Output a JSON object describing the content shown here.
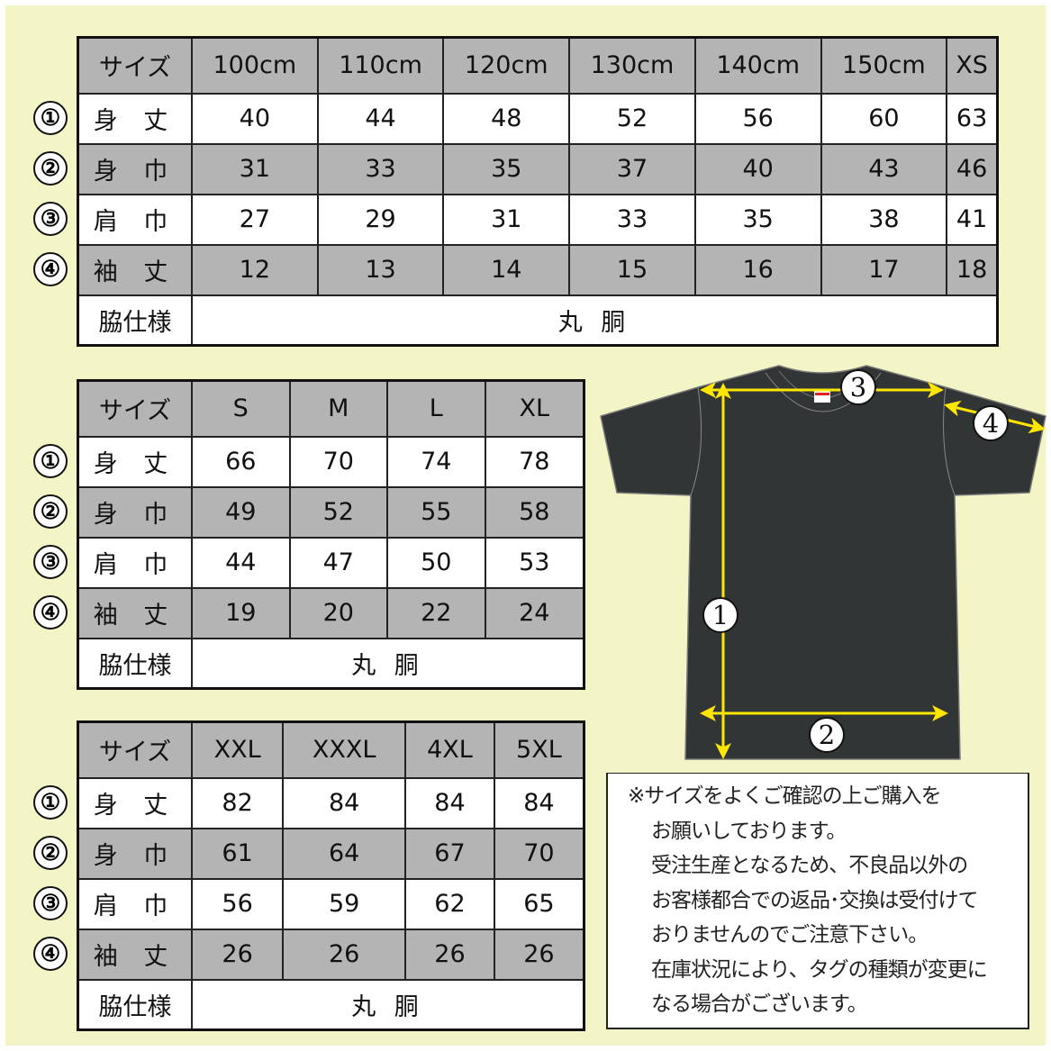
{
  "row_labels": {
    "size": "サイズ",
    "r1": "身 丈",
    "r2": "身 巾",
    "r3": "肩 巾",
    "r4": "袖 丈",
    "side": "脇仕様"
  },
  "markers": [
    "①",
    "②",
    "③",
    "④"
  ],
  "side_value": "丸 胴",
  "table1": {
    "sizes": [
      "100cm",
      "110cm",
      "120cm",
      "130cm",
      "140cm",
      "150cm",
      "XS"
    ],
    "rows": [
      [
        "40",
        "44",
        "48",
        "52",
        "56",
        "60",
        "63"
      ],
      [
        "31",
        "33",
        "35",
        "37",
        "40",
        "43",
        "46"
      ],
      [
        "27",
        "29",
        "31",
        "33",
        "35",
        "38",
        "41"
      ],
      [
        "12",
        "13",
        "14",
        "15",
        "16",
        "17",
        "18"
      ]
    ]
  },
  "table2": {
    "sizes": [
      "S",
      "M",
      "L",
      "XL"
    ],
    "rows": [
      [
        "66",
        "70",
        "74",
        "78"
      ],
      [
        "49",
        "52",
        "55",
        "58"
      ],
      [
        "44",
        "47",
        "50",
        "53"
      ],
      [
        "19",
        "20",
        "22",
        "24"
      ]
    ]
  },
  "table3": {
    "sizes": [
      "XXL",
      "XXXL",
      "4XL",
      "5XL"
    ],
    "rows": [
      [
        "82",
        "84",
        "84",
        "84"
      ],
      [
        "61",
        "64",
        "67",
        "70"
      ],
      [
        "56",
        "59",
        "62",
        "65"
      ],
      [
        "26",
        "26",
        "26",
        "26"
      ]
    ]
  },
  "diagram_markers": [
    "1",
    "2",
    "3",
    "4"
  ],
  "note_lines": [
    "※サイズをよくご確認の上ご購入を",
    "お願いしております。",
    "受注生産となるため、不良品以外の",
    "お客様都合での返品･交換は受付けて",
    "おりませんのでご注意下さい。",
    "在庫状況により、タグの種類が変更に",
    "なる場合がございます。"
  ],
  "colors": {
    "background": "#f4f5c6",
    "header_gray": "#b4b4b4",
    "shirt": "#323535",
    "arrow": "#ffe600"
  }
}
